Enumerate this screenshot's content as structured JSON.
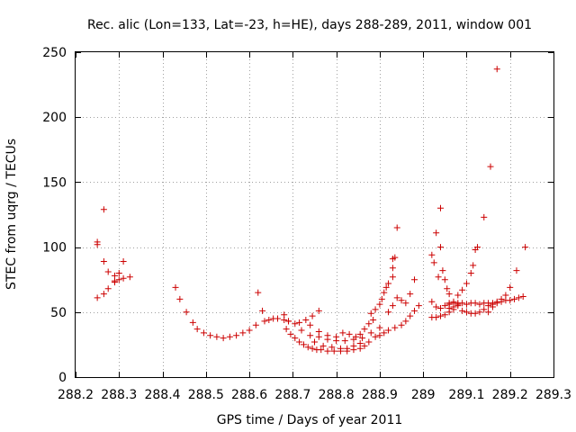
{
  "chart_data": {
    "type": "scatter",
    "title": "Rec. alic (Lon=133, Lat=-23, h=HE), days 288-289, 2011, window 001",
    "xlabel": "GPS time / Days of year 2011",
    "ylabel": "STEC from uqrg / TECUs",
    "xlim": [
      288.2,
      289.3
    ],
    "ylim": [
      0,
      250
    ],
    "xticks": [
      288.2,
      288.3,
      288.4,
      288.5,
      288.6,
      288.7,
      288.8,
      288.9,
      289.0,
      289.1,
      289.2,
      289.3
    ],
    "xtick_labels": [
      "288.2",
      "288.3",
      "288.4",
      "288.5",
      "288.6",
      "288.7",
      "288.8",
      "288.9",
      "289",
      "289.1",
      "289.2",
      "289.3"
    ],
    "yticks": [
      0,
      50,
      100,
      150,
      200,
      250
    ],
    "ytick_labels": [
      "0",
      "50",
      "100",
      "150",
      "200",
      "250"
    ],
    "grid": true,
    "marker": "+",
    "color": "#cc0000",
    "series": [
      {
        "name": "STEC",
        "points": [
          [
            288.25,
            104
          ],
          [
            288.25,
            102
          ],
          [
            288.265,
            129
          ],
          [
            288.265,
            89
          ],
          [
            288.275,
            81
          ],
          [
            288.29,
            78
          ],
          [
            288.29,
            73
          ],
          [
            288.3,
            80
          ],
          [
            288.31,
            89
          ],
          [
            288.31,
            76
          ],
          [
            288.325,
            77
          ],
          [
            288.25,
            61
          ],
          [
            288.265,
            64
          ],
          [
            288.275,
            68
          ],
          [
            288.29,
            74
          ],
          [
            288.3,
            75
          ],
          [
            288.43,
            69
          ],
          [
            288.44,
            60
          ],
          [
            288.455,
            50
          ],
          [
            288.47,
            42
          ],
          [
            288.48,
            37
          ],
          [
            288.495,
            34
          ],
          [
            288.51,
            32
          ],
          [
            288.525,
            31
          ],
          [
            288.54,
            30
          ],
          [
            288.555,
            31
          ],
          [
            288.57,
            32
          ],
          [
            288.585,
            34
          ],
          [
            288.6,
            36
          ],
          [
            288.615,
            40
          ],
          [
            288.62,
            65
          ],
          [
            288.63,
            51
          ],
          [
            288.635,
            43
          ],
          [
            288.645,
            44
          ],
          [
            288.655,
            45
          ],
          [
            288.665,
            45
          ],
          [
            288.68,
            44
          ],
          [
            288.69,
            43
          ],
          [
            288.705,
            41
          ],
          [
            288.715,
            42
          ],
          [
            288.73,
            44
          ],
          [
            288.745,
            47
          ],
          [
            288.76,
            51
          ],
          [
            288.68,
            48
          ],
          [
            288.685,
            37
          ],
          [
            288.695,
            33
          ],
          [
            288.705,
            30
          ],
          [
            288.715,
            27
          ],
          [
            288.725,
            25
          ],
          [
            288.735,
            23
          ],
          [
            288.745,
            22
          ],
          [
            288.755,
            21
          ],
          [
            288.765,
            21
          ],
          [
            288.78,
            20
          ],
          [
            288.795,
            20
          ],
          [
            288.81,
            20
          ],
          [
            288.825,
            20
          ],
          [
            288.84,
            21
          ],
          [
            288.855,
            22
          ],
          [
            288.865,
            24
          ],
          [
            288.875,
            27
          ],
          [
            288.69,
            43
          ],
          [
            288.72,
            36
          ],
          [
            288.74,
            32
          ],
          [
            288.76,
            31
          ],
          [
            288.78,
            29
          ],
          [
            288.8,
            28
          ],
          [
            288.82,
            28
          ],
          [
            288.84,
            29
          ],
          [
            288.86,
            30
          ],
          [
            288.88,
            34
          ],
          [
            288.9,
            38
          ],
          [
            288.74,
            40
          ],
          [
            288.76,
            35
          ],
          [
            288.78,
            32
          ],
          [
            288.8,
            31
          ],
          [
            288.815,
            34
          ],
          [
            288.83,
            33
          ],
          [
            288.845,
            31
          ],
          [
            288.855,
            33
          ],
          [
            288.865,
            37
          ],
          [
            288.875,
            41
          ],
          [
            288.885,
            44
          ],
          [
            288.75,
            27
          ],
          [
            288.77,
            24
          ],
          [
            288.79,
            23
          ],
          [
            288.81,
            22
          ],
          [
            288.825,
            22
          ],
          [
            288.84,
            24
          ],
          [
            288.855,
            26
          ],
          [
            288.88,
            49
          ],
          [
            288.89,
            52
          ],
          [
            288.9,
            56
          ],
          [
            288.905,
            60
          ],
          [
            288.91,
            65
          ],
          [
            288.915,
            69
          ],
          [
            288.92,
            72
          ],
          [
            288.93,
            77
          ],
          [
            288.93,
            84
          ],
          [
            288.93,
            91
          ],
          [
            288.935,
            92
          ],
          [
            288.94,
            115
          ],
          [
            288.89,
            31
          ],
          [
            288.9,
            32
          ],
          [
            288.91,
            34
          ],
          [
            288.92,
            36
          ],
          [
            288.935,
            38
          ],
          [
            288.95,
            40
          ],
          [
            288.96,
            43
          ],
          [
            288.97,
            47
          ],
          [
            288.98,
            51
          ],
          [
            288.99,
            55
          ],
          [
            288.92,
            50
          ],
          [
            288.93,
            55
          ],
          [
            288.94,
            61
          ],
          [
            288.95,
            59
          ],
          [
            288.96,
            57
          ],
          [
            288.97,
            64
          ],
          [
            288.98,
            75
          ],
          [
            289.02,
            94
          ],
          [
            289.025,
            88
          ],
          [
            289.03,
            111
          ],
          [
            289.035,
            77
          ],
          [
            289.04,
            130
          ],
          [
            289.04,
            100
          ],
          [
            289.045,
            82
          ],
          [
            289.05,
            75
          ],
          [
            289.055,
            68
          ],
          [
            289.06,
            64
          ],
          [
            289.02,
            58
          ],
          [
            289.03,
            54
          ],
          [
            289.04,
            53
          ],
          [
            289.05,
            55
          ],
          [
            289.06,
            57
          ],
          [
            289.07,
            58
          ],
          [
            289.08,
            63
          ],
          [
            289.09,
            67
          ],
          [
            289.1,
            72
          ],
          [
            289.11,
            80
          ],
          [
            289.115,
            86
          ],
          [
            289.12,
            98
          ],
          [
            289.125,
            100
          ],
          [
            289.14,
            123
          ],
          [
            289.155,
            162
          ],
          [
            289.17,
            237
          ],
          [
            289.02,
            46
          ],
          [
            289.03,
            46
          ],
          [
            289.04,
            47
          ],
          [
            289.05,
            48
          ],
          [
            289.06,
            50
          ],
          [
            289.07,
            52
          ],
          [
            289.08,
            55
          ],
          [
            289.09,
            51
          ],
          [
            289.1,
            50
          ],
          [
            289.11,
            49
          ],
          [
            289.12,
            49
          ],
          [
            289.13,
            50
          ],
          [
            289.14,
            52
          ],
          [
            289.15,
            55
          ],
          [
            289.16,
            56
          ],
          [
            289.17,
            57
          ],
          [
            289.06,
            56
          ],
          [
            289.07,
            57
          ],
          [
            289.08,
            57
          ],
          [
            289.09,
            57
          ],
          [
            289.1,
            56
          ],
          [
            289.11,
            57
          ],
          [
            289.12,
            57
          ],
          [
            289.13,
            56
          ],
          [
            289.14,
            57
          ],
          [
            289.15,
            57
          ],
          [
            289.16,
            57
          ],
          [
            289.17,
            58
          ],
          [
            289.18,
            58
          ],
          [
            289.19,
            59
          ],
          [
            289.2,
            59
          ],
          [
            289.21,
            60
          ],
          [
            289.22,
            61
          ],
          [
            289.23,
            62
          ],
          [
            289.06,
            53
          ],
          [
            289.07,
            54
          ],
          [
            289.08,
            56
          ],
          [
            289.15,
            50
          ],
          [
            289.16,
            54
          ],
          [
            289.18,
            60
          ],
          [
            289.19,
            63
          ],
          [
            289.2,
            69
          ],
          [
            289.215,
            82
          ],
          [
            289.235,
            100
          ]
        ]
      }
    ]
  }
}
